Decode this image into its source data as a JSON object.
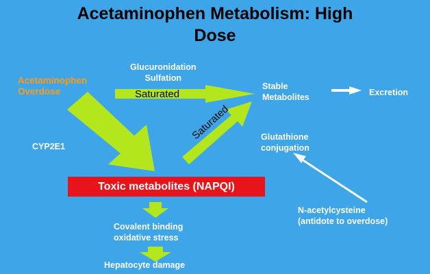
{
  "title_line1": "Acetaminophen Metabolism:   High",
  "title_line2": "Dose",
  "overdose_line1": "Acetaminophen",
  "overdose_line2": "Overdose",
  "glucuronidation": "Glucuronidation",
  "sulfation": "Sulfation",
  "saturated_top": "Saturated",
  "saturated_diag": "Saturated",
  "stable_line1": "Stable",
  "stable_line2": "Metabolites",
  "excretion": "Excretion",
  "glutathione_line1": "Glutathione",
  "glutathione_line2": "conjugation",
  "cyp": "CYP2E1",
  "toxic": "Toxic metabolites (NAPQI)",
  "covalent_line1": "Covalent binding",
  "covalent_line2": "oxidative stress",
  "hepatocyte": "Hepatocyte damage",
  "nac_line1": "N-acetylcysteine",
  "nac_line2": "(antidote to overdose)",
  "colors": {
    "background": "#3ea6e8",
    "arrow_green": "#b4e61e",
    "toxic_box": "#e8141c",
    "label_orange": "#ff9a1a"
  }
}
